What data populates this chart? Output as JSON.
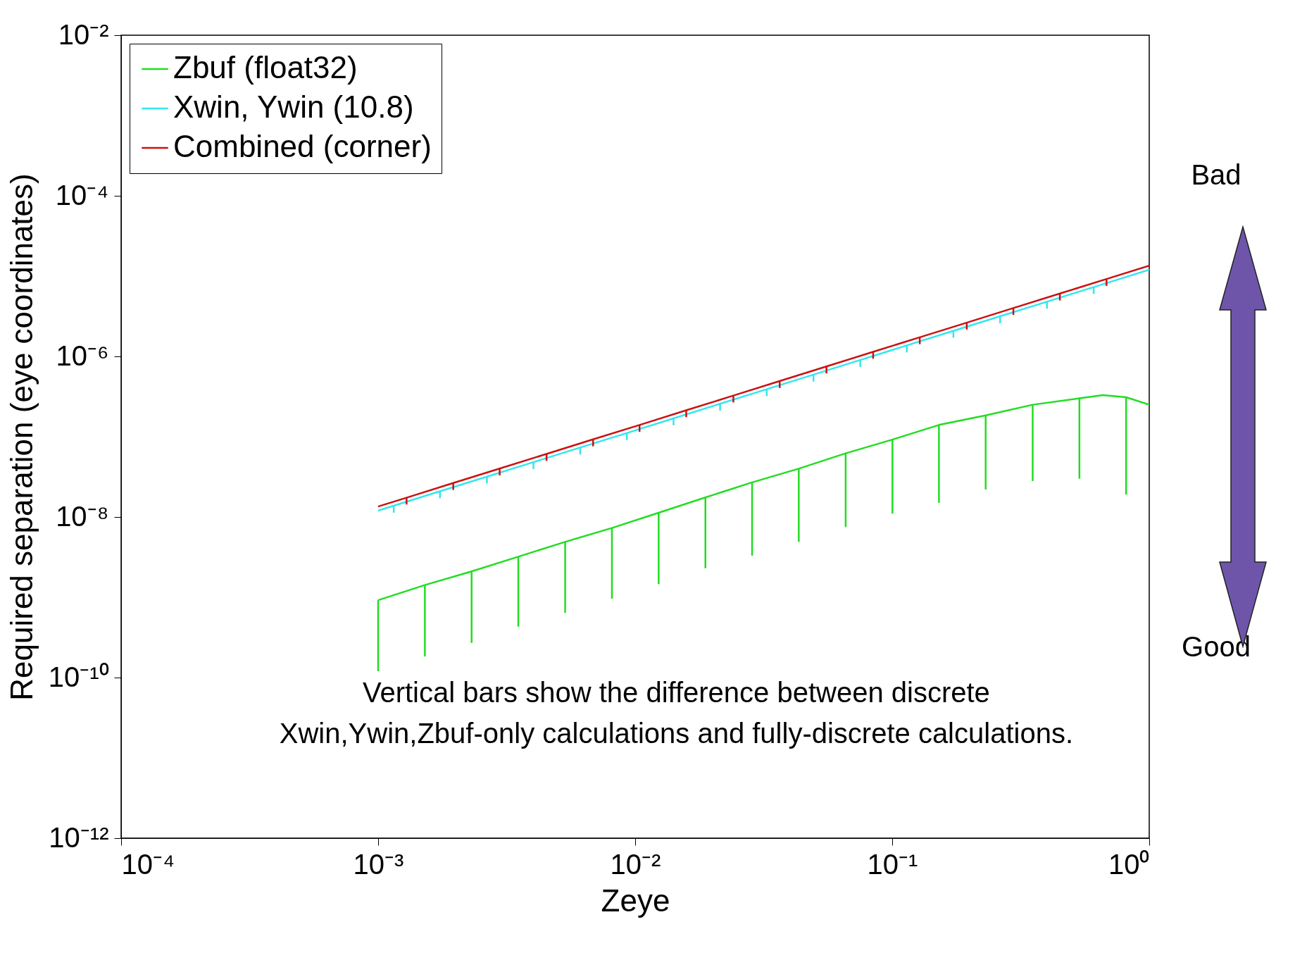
{
  "chart_data": {
    "type": "line",
    "xlabel": "Zeye",
    "ylabel": "Required separation (eye coordinates)",
    "log": "xy",
    "grid": false,
    "legend": "top left",
    "marker": "none",
    "line_style": "solid",
    "xlim": [
      0.0001,
      1
    ],
    "xticks": [
      {
        "value": 0.0001,
        "label": "10⁻⁴"
      },
      {
        "value": 0.001,
        "label": "10⁻³"
      },
      {
        "value": 0.01,
        "label": "10⁻²"
      },
      {
        "value": 0.1,
        "label": "10⁻¹"
      },
      {
        "value": 1,
        "label": "10⁰"
      }
    ],
    "ylim": [
      1e-12,
      0.01
    ],
    "yticks": [
      {
        "value": 1e-12,
        "label": "10⁻¹²"
      },
      {
        "value": 1e-10,
        "label": "10⁻¹⁰"
      },
      {
        "value": 1e-08,
        "label": "10⁻⁸"
      },
      {
        "value": 1e-06,
        "label": "10⁻⁶"
      },
      {
        "value": 0.0001,
        "label": "10⁻⁴"
      },
      {
        "value": 0.01,
        "label": "10⁻²"
      }
    ],
    "series": [
      {
        "name": "Zbuf (float32)",
        "color": "#22dd22",
        "x": [
          0.001,
          0.00152,
          0.00231,
          0.00351,
          0.00534,
          0.00812,
          0.01234,
          0.01876,
          0.0285,
          0.0433,
          0.0659,
          0.1002,
          0.152,
          0.231,
          0.352,
          0.535,
          0.66,
          0.813,
          1
        ],
        "values": [
          9.2e-10,
          1.42e-09,
          2.1e-09,
          3.2e-09,
          4.9e-09,
          7.3e-09,
          1.13e-08,
          1.75e-08,
          2.7e-08,
          4e-08,
          6.2e-08,
          9.2e-08,
          1.4e-07,
          1.84e-07,
          2.5e-07,
          3e-07,
          3.3e-07,
          3.1e-07,
          2.5e-07
        ],
        "errors": [
          [
            1.2e-10,
            9.2e-10
          ],
          [
            1.83e-10,
            1.42e-09
          ],
          [
            2.7e-10,
            2.1e-09
          ],
          [
            4.3e-10,
            3.2e-09
          ],
          [
            6.4e-10,
            4.9e-09
          ],
          [
            9.6e-10,
            7.3e-09
          ],
          [
            1.46e-09,
            1.13e-08
          ],
          [
            2.3e-09,
            1.75e-08
          ],
          [
            3.3e-09,
            2.7e-08
          ],
          [
            4.9e-09,
            4e-08
          ],
          [
            7.5e-09,
            6.2e-08
          ],
          [
            1.1e-08,
            9.2e-08
          ],
          [
            1.5e-08,
            1.4e-07
          ],
          [
            2.2e-08,
            1.84e-07
          ],
          [
            2.8e-08,
            2.5e-07
          ],
          [
            3e-08,
            3e-07
          ],
          null,
          [
            1.9e-08,
            3.1e-07
          ],
          null
        ]
      },
      {
        "name": "Xwin, Ywin (10.8)",
        "color": "#33e6f0",
        "x": [
          0.001,
          0.00115,
          0.00174,
          0.00265,
          0.00402,
          0.00611,
          0.00928,
          0.0141,
          0.0214,
          0.0325,
          0.0494,
          0.0751,
          0.114,
          0.173,
          0.263,
          0.4,
          0.608,
          1
        ],
        "values": [
          1.2e-08,
          1.38e-08,
          2.09e-08,
          3.18e-08,
          4.82e-08,
          7.33e-08,
          1.11e-07,
          1.69e-07,
          2.57e-07,
          3.9e-07,
          5.93e-07,
          9.01e-07,
          1.37e-06,
          2.08e-06,
          3.16e-06,
          4.8e-06,
          7.3e-06,
          1.2e-05
        ],
        "errors": [
          null,
          [
            1.13e-08,
            1.38e-08
          ],
          [
            1.71e-08,
            2.09e-08
          ],
          [
            2.61e-08,
            3.18e-08
          ],
          [
            3.95e-08,
            4.82e-08
          ],
          [
            6.01e-08,
            7.33e-08
          ],
          [
            9.1e-08,
            1.11e-07
          ],
          [
            1.39e-07,
            1.69e-07
          ],
          [
            2.11e-07,
            2.57e-07
          ],
          [
            3.2e-07,
            3.9e-07
          ],
          [
            4.86e-07,
            5.93e-07
          ],
          [
            7.39e-07,
            9.01e-07
          ],
          [
            1.12e-06,
            1.37e-06
          ],
          [
            1.71e-06,
            2.08e-06
          ],
          [
            2.59e-06,
            3.16e-06
          ],
          [
            3.94e-06,
            4.8e-06
          ],
          [
            5.99e-06,
            7.3e-06
          ],
          null
        ]
      },
      {
        "name": "Combined (corner)",
        "color": "#cc1111",
        "x": [
          0.001,
          0.00129,
          0.00196,
          0.00297,
          0.00452,
          0.00686,
          0.0104,
          0.0158,
          0.0241,
          0.0365,
          0.0555,
          0.0843,
          0.128,
          0.195,
          0.296,
          0.449,
          0.682,
          1
        ],
        "values": [
          1.35e-08,
          1.74e-08,
          2.65e-08,
          4.01e-08,
          6.1e-08,
          9.26e-08,
          1.4e-07,
          2.13e-07,
          3.25e-07,
          4.93e-07,
          7.49e-07,
          1.14e-06,
          1.73e-06,
          2.63e-06,
          4e-06,
          6.06e-06,
          9.21e-06,
          1.35e-05
        ],
        "errors": [
          null,
          [
            1.43e-08,
            1.74e-08
          ],
          [
            2.17e-08,
            2.65e-08
          ],
          [
            3.29e-08,
            4.01e-08
          ],
          [
            5e-08,
            6.1e-08
          ],
          [
            7.59e-08,
            9.26e-08
          ],
          [
            1.15e-07,
            1.4e-07
          ],
          [
            1.75e-07,
            2.13e-07
          ],
          [
            2.67e-07,
            3.25e-07
          ],
          [
            4.04e-07,
            4.93e-07
          ],
          [
            6.14e-07,
            7.49e-07
          ],
          [
            9.35e-07,
            1.14e-06
          ],
          [
            1.42e-06,
            1.73e-06
          ],
          [
            2.16e-06,
            2.63e-06
          ],
          [
            3.28e-06,
            4e-06
          ],
          [
            4.97e-06,
            6.06e-06
          ],
          [
            7.55e-06,
            9.21e-06
          ],
          null
        ]
      }
    ],
    "annotations": [
      "Vertical bars show the difference between discrete Xwin,Ywin,Zbuf-only calculations and fully-discrete calculations.",
      "Bad",
      "Good"
    ]
  }
}
